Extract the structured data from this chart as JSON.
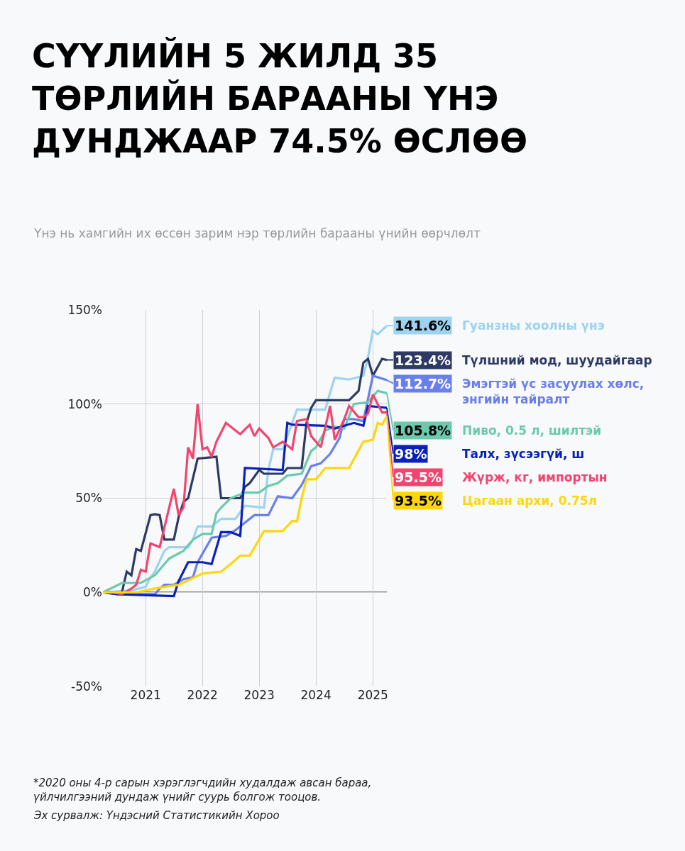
{
  "chart_data": {
    "type": "line",
    "title": "СҮҮЛИЙН 5 ЖИЛД 35\nТӨРЛИЙН БАРААНЫ ҮНЭ\nДУНДЖААР 74.5% ӨСЛӨӨ",
    "subtitle": "Үнэ нь хамгийн их өссөн зарим нэр төрлийн барааны үнийн өөрчлөлт",
    "xlim": [
      "2020-04",
      "2025-04"
    ],
    "xticks": [
      {
        "value": "2021",
        "label": "2021"
      },
      {
        "value": "2022",
        "label": "2022"
      },
      {
        "value": "2023",
        "label": "2023"
      },
      {
        "value": "2024",
        "label": "2024"
      },
      {
        "value": "2025",
        "label": "2025"
      }
    ],
    "ylim": [
      -50,
      150
    ],
    "yticks": [
      {
        "value": -50,
        "label": "-50%"
      },
      {
        "value": 0,
        "label": "0%"
      },
      {
        "value": 50,
        "label": "50%"
      },
      {
        "value": 100,
        "label": "100%"
      },
      {
        "value": 150,
        "label": "150%"
      }
    ],
    "ref_lines": [
      {
        "axis": "y",
        "value": 0,
        "color": "#111111"
      }
    ],
    "grid": true,
    "legend": "right",
    "marker": "none",
    "line_style": "solid",
    "series": [
      {
        "name": "Гуанзны хоолны үнэ",
        "color": "#9dd3f0",
        "x": [
          "2020-04",
          "2020-10",
          "2021-01",
          "2021-02",
          "2021-03",
          "2021-05",
          "2021-06",
          "2021-10",
          "2021-11",
          "2021-12",
          "2022-03",
          "2022-05",
          "2022-08",
          "2022-10",
          "2023-02",
          "2023-03",
          "2023-04",
          "2023-06",
          "2023-09",
          "2024-03",
          "2024-04",
          "2024-05",
          "2024-08",
          "2024-11",
          "2024-12",
          "2025-01",
          "2025-02",
          "2025-04"
        ],
        "values": [
          0,
          1,
          3,
          8,
          11,
          22,
          24,
          24,
          28,
          35,
          35,
          39,
          39,
          46,
          45,
          65,
          76,
          76,
          97,
          97,
          106,
          114,
          113,
          115,
          125,
          139,
          137,
          141.6
        ],
        "value_labels": [
          null,
          null,
          null,
          null,
          null,
          null,
          null,
          null,
          null,
          null,
          null,
          null,
          null,
          null,
          null,
          null,
          null,
          null,
          null,
          null,
          null,
          null,
          null,
          null,
          null,
          null,
          null,
          "141.6%"
        ]
      },
      {
        "name": "Түлшний мод, шуудайгаар",
        "color": "#2e3a63",
        "x": [
          "2020-04",
          "2020-08",
          "2020-09",
          "2020-10",
          "2020-11",
          "2020-12",
          "2021-02",
          "2021-03",
          "2021-04",
          "2021-05",
          "2021-07",
          "2021-08",
          "2021-09",
          "2021-10",
          "2021-12",
          "2022-04",
          "2022-05",
          "2022-09",
          "2022-10",
          "2022-11",
          "2023-01",
          "2023-02",
          "2023-06",
          "2023-07",
          "2023-10",
          "2023-11",
          "2023-12",
          "2024-01",
          "2024-08",
          "2024-10",
          "2024-11",
          "2024-12",
          "2025-01",
          "2025-03",
          "2025-04"
        ],
        "values": [
          0,
          0,
          11,
          9,
          23,
          22,
          41,
          41.5,
          41,
          28,
          28,
          40,
          48,
          50,
          71,
          72,
          50,
          50,
          56,
          58,
          65,
          63,
          63,
          66,
          66,
          90,
          98,
          102,
          102,
          107,
          122,
          124,
          115,
          124,
          123.4
        ],
        "value_labels": [
          null,
          null,
          null,
          null,
          null,
          null,
          null,
          null,
          null,
          null,
          null,
          null,
          null,
          null,
          null,
          null,
          null,
          null,
          null,
          null,
          null,
          null,
          null,
          null,
          null,
          null,
          null,
          null,
          null,
          null,
          null,
          null,
          null,
          null,
          "123.4%"
        ]
      },
      {
        "name": "Эмэгтэй үс засуулах хөлс,\nэнгийн тайралт",
        "color": "#6b7fe8",
        "x": [
          "2020-04",
          "2020-07",
          "2021-03",
          "2021-04",
          "2021-05",
          "2021-07",
          "2021-09",
          "2021-11",
          "2021-12",
          "2022-03",
          "2022-06",
          "2022-08",
          "2022-10",
          "2022-12",
          "2023-03",
          "2023-05",
          "2023-08",
          "2023-10",
          "2023-12",
          "2024-02",
          "2024-04",
          "2024-06",
          "2024-07",
          "2024-09",
          "2024-11",
          "2025-01",
          "2025-04"
        ],
        "values": [
          0,
          -1,
          -1,
          2,
          4,
          4,
          7,
          8,
          16,
          29,
          30,
          33,
          37,
          41,
          41,
          51,
          50,
          57,
          67,
          68.5,
          73.5,
          82,
          92,
          92,
          91,
          115,
          112.7
        ],
        "value_labels": [
          null,
          null,
          null,
          null,
          null,
          null,
          null,
          null,
          null,
          null,
          null,
          null,
          null,
          null,
          null,
          null,
          null,
          null,
          null,
          null,
          null,
          null,
          null,
          null,
          null,
          null,
          "112.7%"
        ]
      },
      {
        "name": "Пиво, 0.5 л, шилтэй",
        "color": "#6cc9ad",
        "x": [
          "2020-04",
          "2020-08",
          "2020-12",
          "2021-03",
          "2021-06",
          "2021-09",
          "2021-11",
          "2022-01",
          "2022-03",
          "2022-04",
          "2022-05",
          "2022-07",
          "2022-10",
          "2023-01",
          "2023-03",
          "2023-05",
          "2023-07",
          "2023-10",
          "2023-12",
          "2024-01",
          "2024-03",
          "2024-05",
          "2024-07",
          "2024-09",
          "2024-12",
          "2025-02",
          "2025-04"
        ],
        "values": [
          0,
          5,
          5,
          9,
          18,
          22,
          28,
          31,
          31,
          42,
          45,
          50,
          53,
          53,
          56.5,
          58,
          62,
          63,
          75,
          77,
          86,
          88,
          87,
          100,
          101,
          107,
          105.8
        ],
        "value_labels": [
          null,
          null,
          null,
          null,
          null,
          null,
          null,
          null,
          null,
          null,
          null,
          null,
          null,
          null,
          null,
          null,
          null,
          null,
          null,
          null,
          null,
          null,
          null,
          null,
          null,
          null,
          "105.8%"
        ]
      },
      {
        "name": "Талх, зүсээгүй, ш",
        "color": "#0a22b8",
        "x": [
          "2020-04",
          "2020-07",
          "2021-07",
          "2021-08",
          "2021-10",
          "2022-01",
          "2022-03",
          "2022-05",
          "2022-07",
          "2022-09",
          "2022-10",
          "2023-06",
          "2023-07",
          "2023-08",
          "2024-03",
          "2024-05",
          "2024-09",
          "2024-11",
          "2024-12",
          "2025-02",
          "2025-04"
        ],
        "values": [
          0,
          -1,
          -2,
          6,
          16,
          16,
          15,
          32,
          32,
          30,
          66,
          65,
          90,
          89,
          88.5,
          87,
          90,
          88.5,
          99,
          98.5,
          98
        ],
        "value_labels": [
          null,
          null,
          null,
          null,
          null,
          null,
          null,
          null,
          null,
          null,
          null,
          null,
          null,
          null,
          null,
          null,
          null,
          null,
          null,
          null,
          "98%"
        ]
      },
      {
        "name": "Жүрж, кг, импортын",
        "color": "#f0456f",
        "x": [
          "2020-04",
          "2020-06",
          "2020-08",
          "2020-10",
          "2020-11",
          "2020-12",
          "2021-01",
          "2021-02",
          "2021-04",
          "2021-06",
          "2021-07",
          "2021-08",
          "2021-09",
          "2021-10",
          "2021-11",
          "2021-12",
          "2022-01",
          "2022-02",
          "2022-03",
          "2022-04",
          "2022-06",
          "2022-08",
          "2022-09",
          "2022-11",
          "2022-12",
          "2023-01",
          "2023-03",
          "2023-04",
          "2023-06",
          "2023-08",
          "2023-09",
          "2023-11",
          "2023-12",
          "2024-02",
          "2024-04",
          "2024-05",
          "2024-07",
          "2024-08",
          "2024-10",
          "2024-11",
          "2024-12",
          "2025-01",
          "2025-03",
          "2025-04"
        ],
        "values": [
          0,
          0,
          -1,
          2,
          4,
          12,
          11,
          26,
          24,
          45,
          55,
          41,
          45,
          77,
          71,
          100,
          76,
          77,
          72,
          80,
          90,
          86,
          84,
          89,
          83,
          87,
          82,
          77,
          80,
          76,
          91,
          92,
          83,
          77,
          99,
          81,
          92,
          99,
          93,
          93,
          95,
          105,
          95.5,
          95.5
        ],
        "value_labels": [
          null,
          null,
          null,
          null,
          null,
          null,
          null,
          null,
          null,
          null,
          null,
          null,
          null,
          null,
          null,
          null,
          null,
          null,
          null,
          null,
          null,
          null,
          null,
          null,
          null,
          null,
          null,
          null,
          null,
          null,
          null,
          null,
          null,
          null,
          null,
          null,
          null,
          null,
          null,
          null,
          null,
          null,
          null,
          "95.5%"
        ]
      },
      {
        "name": "Цагаан архи, 0.75л",
        "color": "#ffd60a",
        "x": [
          "2020-04",
          "2020-11",
          "2021-04",
          "2021-08",
          "2022-01",
          "2022-05",
          "2022-07",
          "2022-09",
          "2022-11",
          "2023-02",
          "2023-06",
          "2023-08",
          "2023-09",
          "2023-10",
          "2023-11",
          "2024-01",
          "2024-03",
          "2024-08",
          "2024-11",
          "2025-01",
          "2025-02",
          "2025-03",
          "2025-04"
        ],
        "values": [
          0,
          0,
          2.5,
          4,
          10,
          11,
          15,
          19.5,
          19.5,
          32.5,
          32.5,
          38,
          37.7,
          50,
          60,
          60,
          66,
          66,
          80,
          81,
          90,
          89,
          93.5
        ],
        "value_labels": [
          null,
          null,
          null,
          null,
          null,
          null,
          null,
          null,
          null,
          null,
          null,
          null,
          null,
          null,
          null,
          null,
          null,
          null,
          null,
          null,
          null,
          null,
          "93.5%"
        ]
      }
    ],
    "annotations": [
      "*2020 оны 4-р сарын хэрэглэгчдийн худалдаж авсан бараа,\nүйлчилгээний дундаж үнийг суурь болгож тооцов.",
      "Эх сурвалж: Үндэсний Статистикийн Хороо"
    ]
  }
}
